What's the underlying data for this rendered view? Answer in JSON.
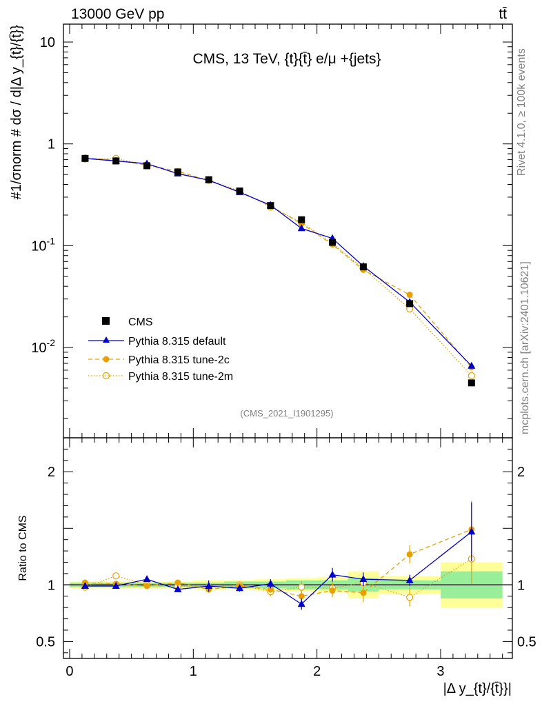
{
  "header": {
    "beam_label": "13000 GeV pp",
    "process_label": "tt̄",
    "plot_title": "CMS, 13 TeV, {t}{t̄} e/μ +{jets}",
    "analysis_id": "(CMS_2021_I1901295)",
    "rivet_label": "Rivet 4.1.0, ≥ 100k events",
    "source_label": "mcplots.cern.ch [arXiv:2401.10621]"
  },
  "chart_data": {
    "type": "line",
    "title": "CMS, 13 TeV, {t}{t̄} e/μ +{jets}",
    "xlabel": "|Δ y_{t}/{t̄}}|",
    "ylabel_top": "#1/σnorm # dσ / d|Δ y_{t}/{t̄}}",
    "ylabel_bottom": "Ratio to CMS",
    "xlim": [
      -0.05,
      3.58
    ],
    "top_ylim": [
      0.0013,
      15
    ],
    "top_scale": "log",
    "bottom_ylim": [
      0.35,
      2.3
    ],
    "x_ticks": [
      0,
      1,
      2,
      3
    ],
    "top_tick_labels": [
      "10",
      "1",
      "10^-1",
      "10^-2"
    ],
    "bottom_tick_labels": [
      "2",
      "1",
      "0.5"
    ],
    "x": [
      0.125,
      0.375,
      0.625,
      0.875,
      1.125,
      1.375,
      1.625,
      1.875,
      2.125,
      2.375,
      2.75,
      3.25
    ],
    "bin_edges": [
      0,
      0.25,
      0.5,
      0.75,
      1.0,
      1.25,
      1.5,
      1.75,
      2.0,
      2.25,
      2.5,
      3.0,
      3.5
    ],
    "data": {
      "name": "CMS",
      "values": [
        0.72,
        0.68,
        0.61,
        0.53,
        0.445,
        0.345,
        0.248,
        0.18,
        0.108,
        0.062,
        0.027,
        0.0045
      ],
      "band_yellow": [
        0.03,
        0.03,
        0.03,
        0.03,
        0.04,
        0.04,
        0.05,
        0.06,
        0.07,
        0.12,
        0.08,
        0.2
      ],
      "band_green": [
        0.02,
        0.02,
        0.02,
        0.02,
        0.02,
        0.03,
        0.03,
        0.04,
        0.04,
        0.06,
        0.04,
        0.12
      ]
    },
    "series": [
      {
        "name": "Pythia 8.315 default",
        "color": "#0000cc",
        "marker": "triangle",
        "dash": "solid",
        "values": [
          0.72,
          0.68,
          0.64,
          0.51,
          0.44,
          0.335,
          0.25,
          0.148,
          0.118,
          0.063,
          0.028,
          0.0066
        ],
        "ratio": [
          0.99,
          0.99,
          1.05,
          0.96,
          0.99,
          0.97,
          1.01,
          0.83,
          1.09,
          1.05,
          1.04,
          1.47
        ],
        "ratio_err": [
          0.01,
          0.01,
          0.02,
          0.02,
          0.05,
          0.03,
          0.04,
          0.05,
          0.06,
          0.06,
          0.05,
          0.26
        ]
      },
      {
        "name": "Pythia 8.315 tune-2c",
        "color": "#e8a000",
        "marker": "circle",
        "dash": "dashed",
        "values": [
          0.73,
          0.69,
          0.62,
          0.54,
          0.435,
          0.34,
          0.245,
          0.165,
          0.103,
          0.058,
          0.033,
          0.0064
        ],
        "ratio": [
          1.02,
          1.01,
          0.99,
          1.02,
          0.96,
          0.99,
          0.96,
          0.9,
          0.95,
          0.93,
          1.27,
          1.49
        ],
        "ratio_err": [
          0.02,
          0.02,
          0.02,
          0.02,
          0.03,
          0.03,
          0.03,
          0.05,
          0.06,
          0.08,
          0.08,
          0.25
        ]
      },
      {
        "name": "Pythia 8.315 tune-2m",
        "color": "#e8a000",
        "marker": "open-circle",
        "dash": "dotted",
        "values": [
          0.71,
          0.72,
          0.62,
          0.52,
          0.44,
          0.345,
          0.24,
          0.17,
          0.105,
          0.06,
          0.024,
          0.0053
        ],
        "ratio": [
          0.98,
          1.08,
          1.0,
          0.99,
          0.98,
          1.0,
          0.94,
          0.98,
          0.97,
          1.02,
          0.89,
          1.23
        ],
        "ratio_err": [
          0.02,
          0.02,
          0.02,
          0.02,
          0.03,
          0.03,
          0.04,
          0.05,
          0.06,
          0.07,
          0.08,
          0.22
        ]
      }
    ]
  }
}
